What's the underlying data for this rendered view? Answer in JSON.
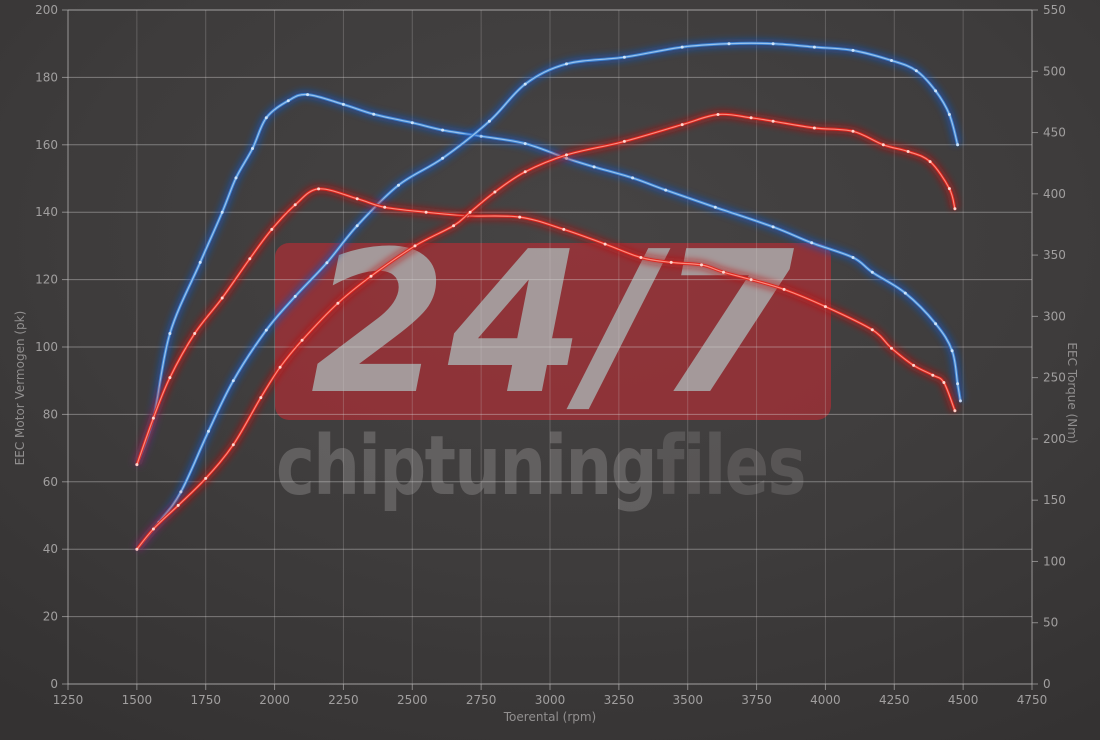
{
  "page": {
    "background_color": "#3e3c3c"
  },
  "watermark": {
    "badge_text": "24/7",
    "badge_color": "rgba(193,44,52,0.60)",
    "badge_text_color": "#a8a8a8",
    "brand_left": "chiptuning",
    "brand_right": "files"
  },
  "chart_data": {
    "type": "line",
    "title": "",
    "xlabel": "Toerental (rpm)",
    "ylabel_left": "EEC Motor Vermogen (pk)",
    "ylabel_right": "EEC Torque (Nm)",
    "grid": true,
    "legend": "none",
    "x_axis": {
      "min": 1250,
      "max": 4750,
      "ticks": [
        1250,
        1500,
        1750,
        2000,
        2250,
        2500,
        2750,
        3000,
        3250,
        3500,
        3750,
        4000,
        4250,
        4500,
        4750
      ]
    },
    "y_axis_left": {
      "min": 0,
      "max": 200,
      "ticks": [
        0,
        20,
        40,
        60,
        80,
        100,
        120,
        140,
        160,
        180,
        200
      ]
    },
    "y_axis_right": {
      "min": 0,
      "max": 550,
      "ticks": [
        0,
        50,
        100,
        150,
        200,
        250,
        300,
        350,
        400,
        450,
        500,
        550
      ]
    },
    "colors": {
      "tuned_glow": "#1857c2",
      "tuned_core": "#3d85d8",
      "tuned_center": "#a9ceee",
      "tuned_dot": "#d6e9fb",
      "original_glow": "#c01010",
      "original_core": "#e2231a",
      "original_center": "#ff9d8f",
      "original_dot": "#ffe2dc"
    },
    "series": [
      {
        "name": "torque_tuned",
        "color_key": "tuned",
        "axis": "right",
        "unit": "Nm",
        "points": [
          [
            1500,
            179
          ],
          [
            1560,
            217
          ],
          [
            1620,
            286
          ],
          [
            1730,
            344
          ],
          [
            1810,
            385
          ],
          [
            1860,
            413
          ],
          [
            1920,
            437
          ],
          [
            1970,
            462
          ],
          [
            2050,
            476
          ],
          [
            2120,
            481
          ],
          [
            2250,
            473
          ],
          [
            2360,
            465
          ],
          [
            2500,
            458
          ],
          [
            2610,
            452
          ],
          [
            2750,
            447
          ],
          [
            2910,
            441
          ],
          [
            3060,
            429
          ],
          [
            3160,
            422
          ],
          [
            3300,
            413
          ],
          [
            3420,
            403
          ],
          [
            3600,
            389
          ],
          [
            3810,
            373
          ],
          [
            3950,
            360
          ],
          [
            4100,
            348
          ],
          [
            4170,
            336
          ],
          [
            4290,
            319
          ],
          [
            4400,
            294
          ],
          [
            4460,
            272
          ],
          [
            4480,
            245
          ],
          [
            4490,
            231
          ]
        ]
      },
      {
        "name": "power_tuned",
        "color_key": "tuned",
        "axis": "left",
        "unit": "pk",
        "points": [
          [
            1500,
            40
          ],
          [
            1580,
            48
          ],
          [
            1660,
            57
          ],
          [
            1760,
            75
          ],
          [
            1850,
            90
          ],
          [
            1970,
            105
          ],
          [
            2075,
            115
          ],
          [
            2190,
            125
          ],
          [
            2300,
            136
          ],
          [
            2450,
            148
          ],
          [
            2610,
            156
          ],
          [
            2780,
            167
          ],
          [
            2910,
            178
          ],
          [
            3060,
            184
          ],
          [
            3270,
            186
          ],
          [
            3480,
            189
          ],
          [
            3650,
            190
          ],
          [
            3810,
            190
          ],
          [
            3960,
            189
          ],
          [
            4100,
            188
          ],
          [
            4240,
            185
          ],
          [
            4330,
            182
          ],
          [
            4400,
            176
          ],
          [
            4450,
            169
          ],
          [
            4480,
            160
          ]
        ]
      },
      {
        "name": "torque_original",
        "color_key": "original",
        "axis": "right",
        "unit": "Nm",
        "points": [
          [
            1500,
            179
          ],
          [
            1560,
            217
          ],
          [
            1620,
            250
          ],
          [
            1710,
            286
          ],
          [
            1810,
            315
          ],
          [
            1910,
            347
          ],
          [
            1990,
            371
          ],
          [
            2075,
            391
          ],
          [
            2160,
            404
          ],
          [
            2300,
            396
          ],
          [
            2400,
            389
          ],
          [
            2550,
            385
          ],
          [
            2700,
            382
          ],
          [
            2890,
            381
          ],
          [
            3050,
            371
          ],
          [
            3200,
            359
          ],
          [
            3330,
            348
          ],
          [
            3440,
            344
          ],
          [
            3550,
            342
          ],
          [
            3630,
            336
          ],
          [
            3730,
            330
          ],
          [
            3850,
            322
          ],
          [
            4000,
            308
          ],
          [
            4170,
            289
          ],
          [
            4240,
            274
          ],
          [
            4320,
            260
          ],
          [
            4390,
            252
          ],
          [
            4430,
            246
          ],
          [
            4470,
            223
          ]
        ]
      },
      {
        "name": "power_original",
        "color_key": "original",
        "axis": "left",
        "unit": "pk",
        "points": [
          [
            1500,
            40
          ],
          [
            1560,
            46
          ],
          [
            1650,
            53
          ],
          [
            1750,
            61
          ],
          [
            1850,
            71
          ],
          [
            1950,
            85
          ],
          [
            2020,
            94
          ],
          [
            2100,
            102
          ],
          [
            2230,
            113
          ],
          [
            2350,
            121
          ],
          [
            2510,
            130
          ],
          [
            2650,
            136
          ],
          [
            2710,
            140
          ],
          [
            2800,
            146
          ],
          [
            2910,
            152
          ],
          [
            3060,
            157
          ],
          [
            3270,
            161
          ],
          [
            3480,
            166
          ],
          [
            3610,
            169
          ],
          [
            3730,
            168
          ],
          [
            3810,
            167
          ],
          [
            3960,
            165
          ],
          [
            4100,
            164
          ],
          [
            4210,
            160
          ],
          [
            4300,
            158
          ],
          [
            4380,
            155
          ],
          [
            4450,
            147
          ],
          [
            4470,
            141
          ]
        ]
      }
    ]
  }
}
